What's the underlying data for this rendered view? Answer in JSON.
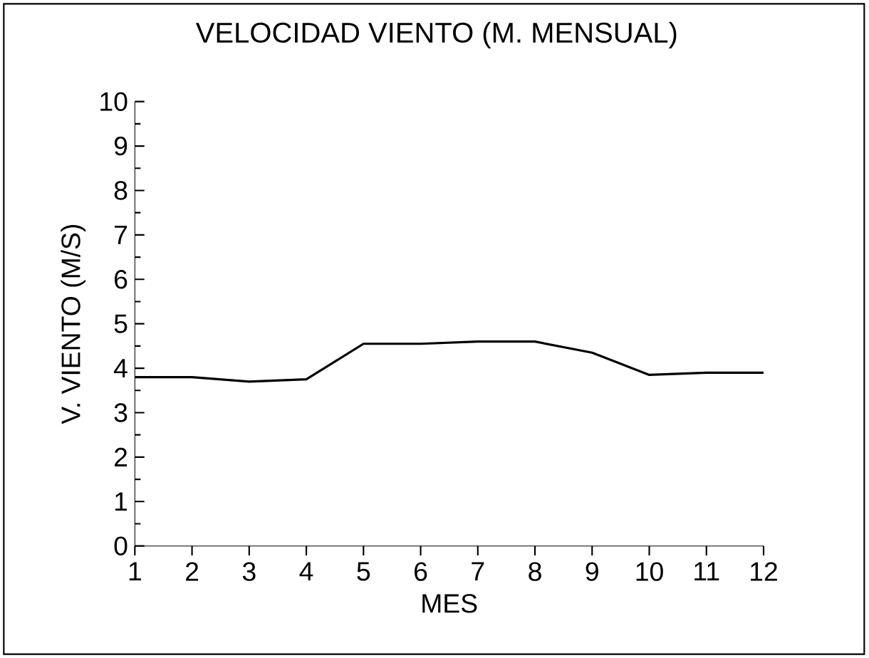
{
  "chart_data": {
    "type": "line",
    "title": "VELOCIDAD VIENTO (M. MENSUAL)",
    "xlabel": "MES",
    "ylabel": "V. VIENTO (M/S)",
    "x": [
      1,
      2,
      3,
      4,
      5,
      6,
      7,
      8,
      9,
      10,
      11,
      12
    ],
    "values": [
      3.8,
      3.8,
      3.7,
      3.75,
      4.55,
      4.55,
      4.6,
      4.6,
      4.35,
      3.85,
      3.9,
      3.9
    ],
    "color": "#000000",
    "xlim": [
      1,
      12
    ],
    "xticks": [
      1,
      2,
      3,
      4,
      5,
      6,
      7,
      8,
      9,
      10,
      11,
      12
    ],
    "ylim": [
      0,
      10
    ],
    "yticks": [
      0,
      1,
      2,
      3,
      4,
      5,
      6,
      7,
      8,
      9,
      10
    ],
    "grid": false,
    "marker": "none",
    "line_style": "solid"
  }
}
